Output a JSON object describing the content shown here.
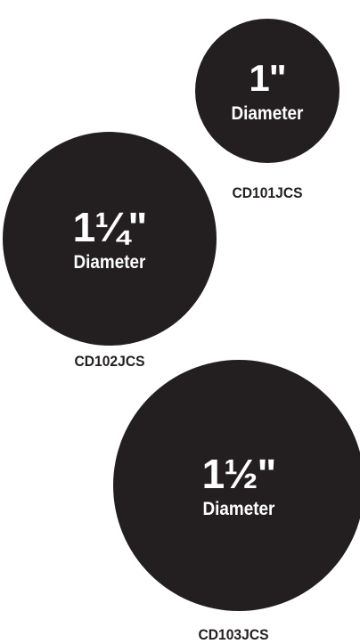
{
  "colors": {
    "disc_fill": "#231f20",
    "disc_text": "#ffffff",
    "code_text": "#231f20",
    "background": "#ffffff"
  },
  "discs": [
    {
      "size": "1\"",
      "label": "Diameter",
      "code": "CD101JCS"
    },
    {
      "size": "1¼\"",
      "label": "Diameter",
      "code": "CD102JCS"
    },
    {
      "size": "1½\"",
      "label": "Diameter",
      "code": "CD103JCS"
    }
  ]
}
